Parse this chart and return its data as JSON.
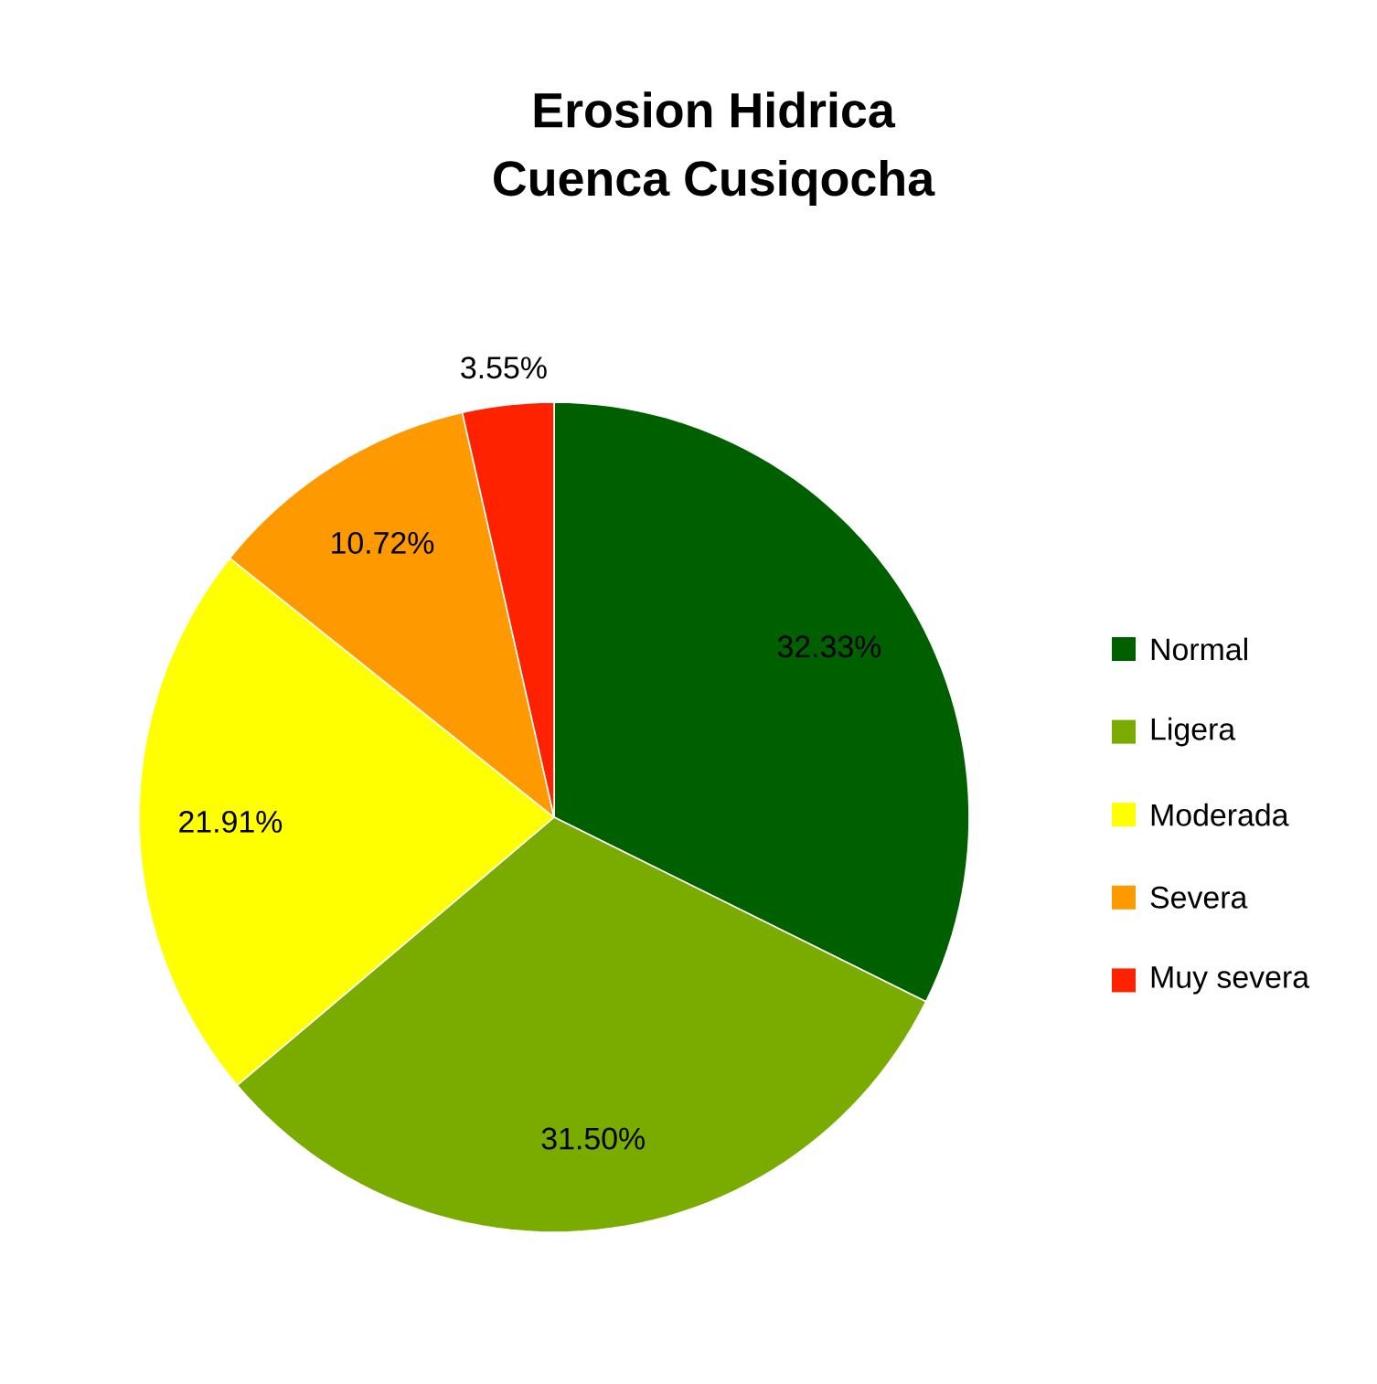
{
  "chart_data": {
    "type": "pie",
    "title": "Erosion Hidrica",
    "subtitle": "Cuenca Cusiqocha",
    "categories": [
      "Normal",
      "Ligera",
      "Moderada",
      "Severa",
      "Muy severa"
    ],
    "values": [
      32.33,
      31.5,
      21.91,
      10.72,
      3.55
    ],
    "value_labels": [
      "32.33%",
      "31.50%",
      "21.91%",
      "10.72%",
      "3.55%"
    ],
    "colors": [
      "#006000",
      "#7aac00",
      "#ffff00",
      "#ff9900",
      "#ff2200"
    ],
    "legend": "right"
  }
}
